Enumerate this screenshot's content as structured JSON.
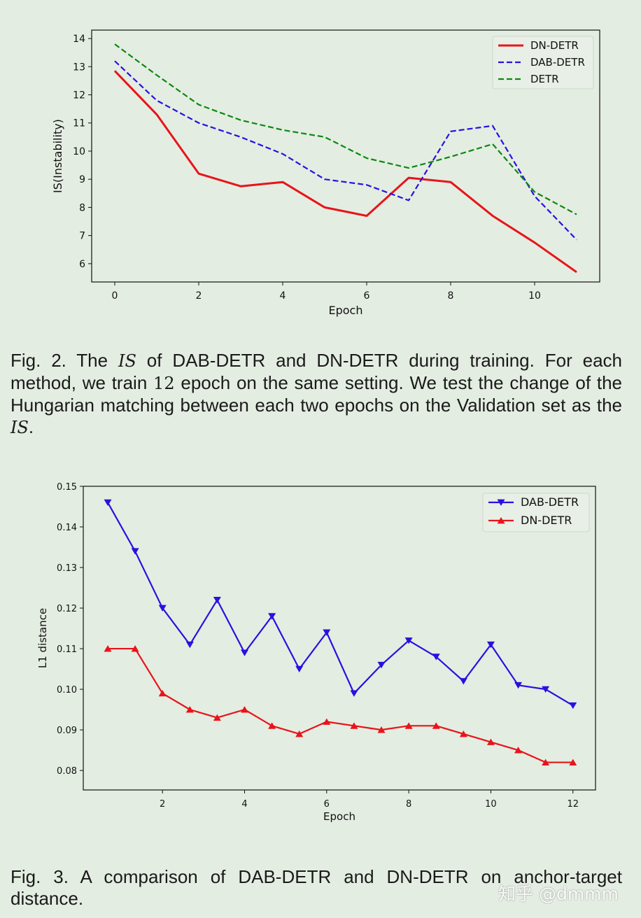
{
  "chart_data": [
    {
      "type": "line",
      "xlabel": "Epoch",
      "ylabel": "IS(Instability)",
      "xlim": [
        -0.55,
        11.55
      ],
      "ylim": [
        5.35,
        14.3
      ],
      "xticks": [
        0,
        2,
        4,
        6,
        8,
        10
      ],
      "yticks": [
        6,
        7,
        8,
        9,
        10,
        11,
        12,
        13,
        14
      ],
      "grid": false,
      "legend_position": "top-right",
      "x": [
        0,
        1,
        2,
        3,
        4,
        5,
        6,
        7,
        8,
        9,
        10,
        11
      ],
      "series": [
        {
          "name": "DN-DETR",
          "color": "#e8141a",
          "style": "solid",
          "values": [
            12.85,
            11.3,
            9.2,
            8.75,
            8.9,
            8.0,
            7.7,
            9.05,
            8.9,
            7.7,
            6.75,
            5.7
          ]
        },
        {
          "name": "DAB-DETR",
          "color": "#2a10e0",
          "style": "dashed",
          "values": [
            13.2,
            11.8,
            11.0,
            10.5,
            9.9,
            9.0,
            8.8,
            8.25,
            10.7,
            10.9,
            8.4,
            6.85
          ]
        },
        {
          "name": "DETR",
          "color": "#0a8a10",
          "style": "dashed",
          "values": [
            13.8,
            12.7,
            11.65,
            11.1,
            10.75,
            10.5,
            9.75,
            9.4,
            9.8,
            10.25,
            8.55,
            7.75
          ]
        }
      ]
    },
    {
      "type": "line",
      "xlabel": "Epoch",
      "ylabel": "L1 distance",
      "xlim": [
        0.07,
        12.55
      ],
      "ylim": [
        0.0752,
        0.15
      ],
      "xticks": [
        2,
        4,
        6,
        8,
        10,
        12
      ],
      "yticks": [
        0.08,
        0.09,
        0.1,
        0.11,
        0.12,
        0.13,
        0.14,
        0.15
      ],
      "ytick_labels": [
        "0.08",
        "0.09",
        "0.10",
        "0.11",
        "0.12",
        "0.13",
        "0.14",
        "0.15"
      ],
      "grid": false,
      "legend_position": "top-right",
      "x": [
        0.667,
        1.333,
        2,
        2.667,
        3.333,
        4,
        4.667,
        5.333,
        6,
        6.667,
        7.333,
        8,
        8.667,
        9.333,
        10,
        10.667,
        11.333,
        12
      ],
      "series": [
        {
          "name": "DAB-DETR",
          "color": "#2a10e0",
          "style": "solid",
          "marker": "triangle-down",
          "values": [
            0.146,
            0.134,
            0.12,
            0.111,
            0.122,
            0.109,
            0.118,
            0.105,
            0.114,
            0.099,
            0.106,
            0.112,
            0.108,
            0.102,
            0.111,
            0.101,
            0.1,
            0.096
          ]
        },
        {
          "name": "DN-DETR",
          "color": "#e8141a",
          "style": "solid",
          "marker": "triangle-up",
          "values": [
            0.11,
            0.11,
            0.099,
            0.095,
            0.093,
            0.095,
            0.091,
            0.089,
            0.092,
            0.091,
            0.09,
            0.091,
            0.091,
            0.089,
            0.087,
            0.085,
            0.082,
            0.082
          ]
        }
      ]
    }
  ],
  "captions": {
    "fig2": {
      "p1": "Fig. 2. The ",
      "m1": "IS",
      "p2": " of DAB-DETR and DN-DETR during training. For each method, we train ",
      "m2": "12",
      "p3": " epoch on the same setting. We test the change of the Hungarian matching between each two epochs on the Validation set as the ",
      "m3": "IS",
      "p4": "."
    },
    "fig3": "Fig. 3. A comparison of DAB-DETR and DN-DETR on anchor-target distance."
  },
  "watermark": "知乎 @dmmm"
}
